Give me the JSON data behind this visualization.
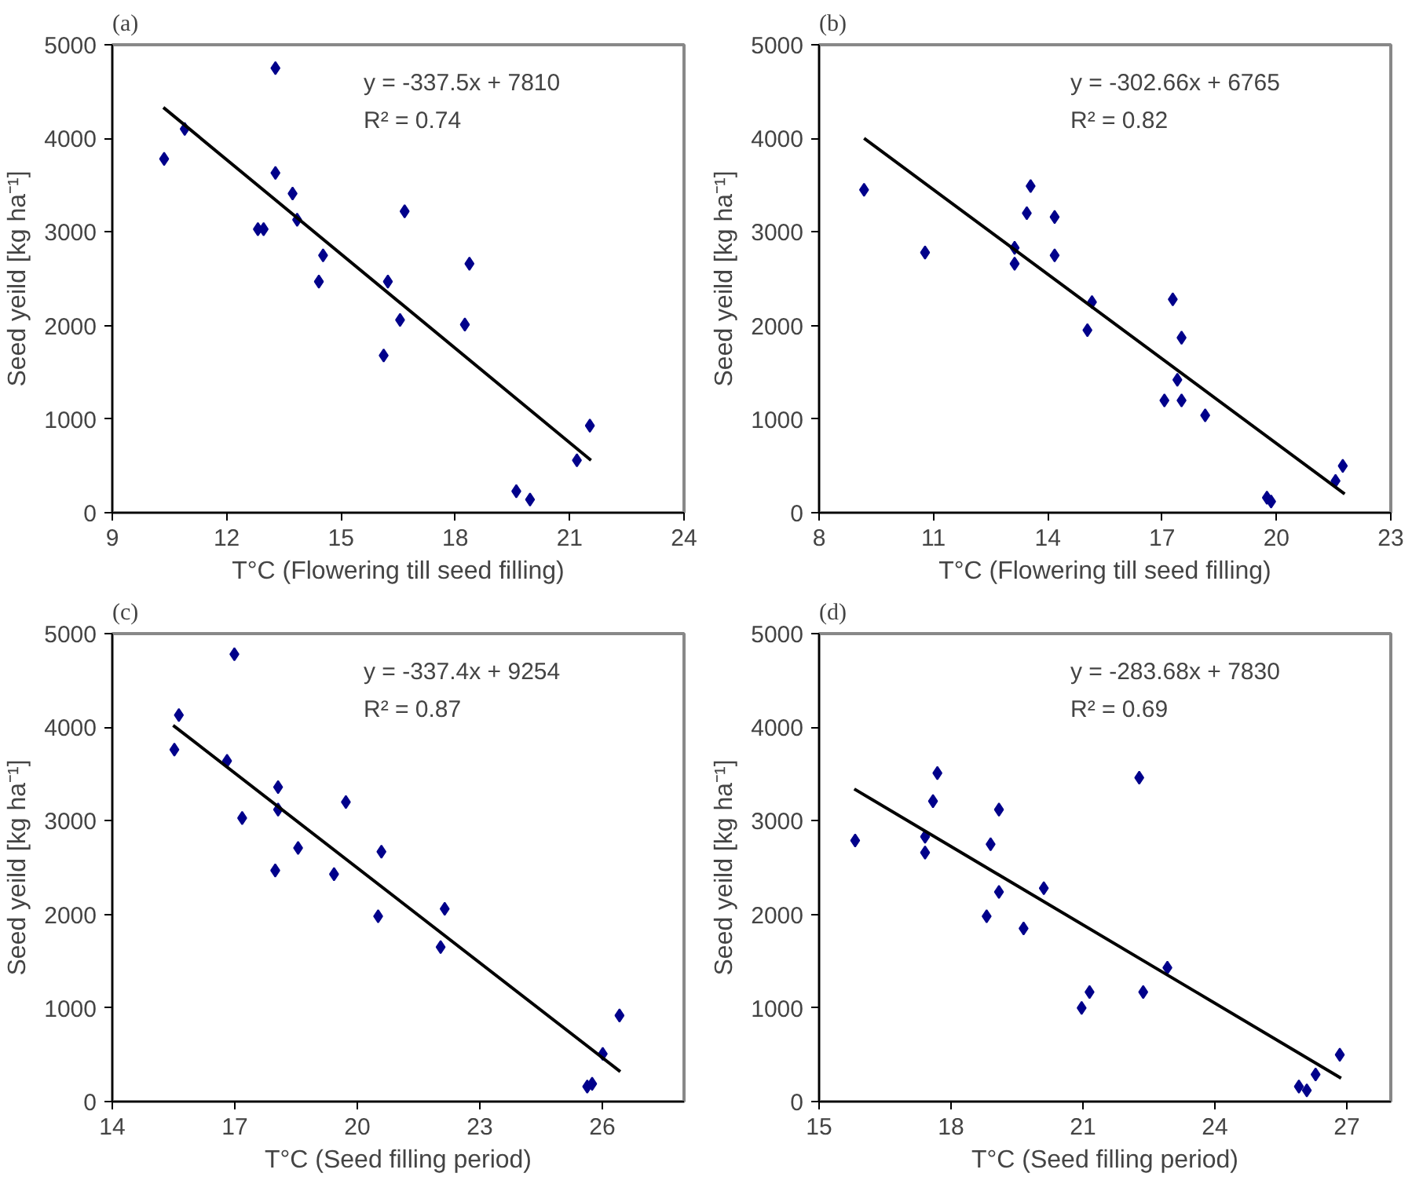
{
  "chart_data": [
    {
      "type": "scatter",
      "title": "(a)",
      "xlabel": "T°C (Flowering till seed filling)",
      "ylabel": "Seed yeild [kg ha⁻¹]",
      "marker": "diamond",
      "xlim": [
        9,
        24
      ],
      "xticks": [
        9,
        12,
        15,
        18,
        21,
        24
      ],
      "ylim": [
        0,
        5000
      ],
      "yticks": [
        0,
        1000,
        2000,
        3000,
        4000,
        5000
      ],
      "annotations": [
        "y = -337.5x + 7810",
        "R² = 0.74"
      ],
      "series": [
        {
          "color": "#00008b",
          "x": [
            10.36,
            10.9,
            13.28,
            13.28,
            13.73,
            13.85,
            12.82,
            12.97,
            14.53,
            14.42,
            16.67,
            16.23,
            16.55,
            16.12,
            18.37,
            18.25,
            21.53,
            21.19,
            19.6,
            19.96
          ],
          "values": [
            3780,
            4100,
            4750,
            3630,
            3410,
            3130,
            3030,
            3030,
            2750,
            2470,
            3220,
            2470,
            2060,
            1680,
            2660,
            2010,
            930,
            560,
            230,
            140
          ]
        },
        {
          "type": "line",
          "marker": "none",
          "color": "#000000",
          "x": [
            10.34,
            21.56
          ],
          "values": [
            4330,
            560
          ]
        }
      ]
    },
    {
      "type": "scatter",
      "title": "(b)",
      "xlabel": "T°C (Flowering till seed filling)",
      "ylabel": "Seed yeild [kg ha⁻¹]",
      "marker": "diamond",
      "xlim": [
        8,
        23
      ],
      "xticks": [
        8,
        11,
        14,
        17,
        20,
        23
      ],
      "ylim": [
        0,
        5000
      ],
      "yticks": [
        0,
        1000,
        2000,
        3000,
        4000,
        5000
      ],
      "annotations": [
        "y = -302.66x + 6765",
        "R² = 0.82"
      ],
      "series": [
        {
          "color": "#00008b",
          "x": [
            9.18,
            10.78,
            13.13,
            13.13,
            13.45,
            13.55,
            14.18,
            14.18,
            15.16,
            15.04,
            17.28,
            17.51,
            17.4,
            17.06,
            17.51,
            18.13,
            19.75,
            19.86,
            21.55,
            21.74
          ],
          "values": [
            3450,
            2780,
            2830,
            2660,
            3200,
            3490,
            3160,
            2750,
            2250,
            1950,
            2280,
            1870,
            1420,
            1200,
            1200,
            1040,
            160,
            120,
            340,
            500
          ]
        },
        {
          "type": "line",
          "marker": "none",
          "color": "#000000",
          "x": [
            9.18,
            21.79
          ],
          "values": [
            4000,
            200
          ]
        }
      ]
    },
    {
      "type": "scatter",
      "title": "(c)",
      "xlabel": "T°C (Seed filling period)",
      "ylabel": "Seed yeild [kg ha⁻¹]",
      "marker": "diamond",
      "xlim": [
        14,
        28
      ],
      "xticks": [
        14,
        17,
        20,
        23,
        26
      ],
      "ylim": [
        0,
        5000
      ],
      "yticks": [
        0,
        1000,
        2000,
        3000,
        4000,
        5000
      ],
      "annotations": [
        "y = -337.4x + 9254",
        "R² = 0.87"
      ],
      "series": [
        {
          "color": "#00008b",
          "x": [
            15.52,
            15.63,
            16.99,
            16.81,
            17.18,
            18.06,
            18.06,
            17.99,
            18.55,
            19.72,
            19.43,
            20.59,
            20.51,
            22.14,
            22.04,
            26.42,
            26.01,
            25.75,
            25.63
          ],
          "values": [
            3760,
            4130,
            4780,
            3640,
            3030,
            3360,
            3120,
            2470,
            2710,
            3200,
            2430,
            2670,
            1980,
            2060,
            1650,
            920,
            510,
            190,
            160
          ]
        },
        {
          "type": "line",
          "marker": "none",
          "color": "#000000",
          "x": [
            15.49,
            26.44
          ],
          "values": [
            4020,
            320
          ]
        }
      ]
    },
    {
      "type": "scatter",
      "title": "(d)",
      "xlabel": "T°C (Seed filling period)",
      "ylabel": "Seed yeild [kg ha⁻¹]",
      "marker": "diamond",
      "xlim": [
        15,
        28
      ],
      "xticks": [
        15,
        18,
        21,
        24,
        27
      ],
      "ylim": [
        0,
        5000
      ],
      "yticks": [
        0,
        1000,
        2000,
        3000,
        4000,
        5000
      ],
      "annotations": [
        "y = -283.68x + 7830",
        "R² = 0.69"
      ],
      "series": [
        {
          "color": "#00008b",
          "x": [
            15.82,
            17.41,
            17.41,
            17.59,
            17.69,
            19.09,
            18.9,
            19.09,
            18.81,
            19.65,
            20.11,
            22.28,
            21.15,
            20.97,
            22.37,
            22.92,
            26.84,
            26.29,
            25.91,
            26.09
          ],
          "values": [
            2790,
            2830,
            2660,
            3210,
            3510,
            3120,
            2750,
            2240,
            1980,
            1850,
            2280,
            3460,
            1170,
            1000,
            1170,
            1430,
            500,
            290,
            160,
            120
          ]
        },
        {
          "type": "line",
          "marker": "none",
          "color": "#000000",
          "x": [
            15.8,
            26.87
          ],
          "values": [
            3340,
            250
          ]
        }
      ]
    }
  ]
}
